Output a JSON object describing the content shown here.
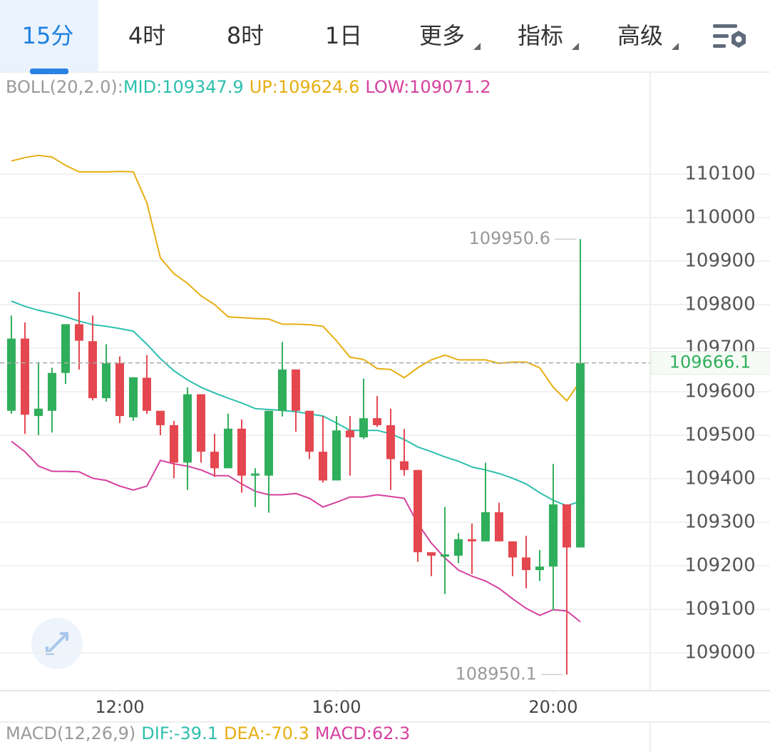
{
  "tabs": {
    "items": [
      "15分",
      "4时",
      "8时",
      "1日",
      "更多",
      "指标",
      "高级"
    ],
    "selected": 0,
    "dropdown_from": 4
  },
  "chart_data": {
    "type": "candlestick",
    "indicator": "BOLL(20,2.0):",
    "x": [
      10,
      10.25,
      10.5,
      10.75,
      11,
      11.25,
      11.5,
      11.75,
      12,
      12.25,
      12.5,
      12.75,
      13,
      13.25,
      13.5,
      13.75,
      14,
      14.25,
      14.5,
      14.75,
      15,
      15.25,
      15.5,
      15.75,
      16,
      16.25,
      16.5,
      16.75,
      17,
      17.25,
      17.5,
      17.75,
      18,
      18.25,
      18.5,
      18.75,
      19,
      19.25,
      19.5,
      19.75,
      20,
      20.25,
      20.5
    ],
    "open": [
      109556,
      109722,
      109544,
      109556,
      109643,
      109755,
      109716,
      109585,
      109665,
      109541,
      109632,
      109556,
      109523,
      109437,
      109594,
      109462,
      109424,
      109515,
      109407,
      109407,
      109556,
      109651,
      109556,
      109462,
      109396,
      109511,
      109495,
      109539,
      109523,
      109440,
      109420,
      109231,
      109221,
      109223,
      109261,
      109256,
      109323,
      109256,
      109219,
      109190,
      109198,
      109341,
      109242
    ],
    "high": [
      109775,
      109759,
      109668,
      109655,
      109755,
      109829,
      109775,
      109709,
      109681,
      109633,
      109684,
      109556,
      109533,
      109610,
      109594,
      109503,
      109549,
      109536,
      109424,
      109556,
      109714,
      109651,
      109556,
      109544,
      109544,
      109544,
      109630,
      109590,
      109561,
      109514,
      109420,
      109231,
      109335,
      109275,
      109297,
      109437,
      109345,
      109256,
      109269,
      109236,
      109434,
      109341,
      109950.6
    ],
    "low": [
      109549,
      109503,
      109500,
      109506,
      109618,
      109651,
      109580,
      109577,
      109528,
      109533,
      109549,
      109500,
      109401,
      109374,
      109437,
      109404,
      109424,
      109368,
      109335,
      109322,
      109543,
      109508,
      109445,
      109391,
      109396,
      109407,
      109491,
      109519,
      109374,
      109407,
      109209,
      109176,
      109135,
      109206,
      109181,
      109256,
      109256,
      109176,
      109148,
      109165,
      109097,
      108950.1,
      109242
    ],
    "close": [
      109722,
      109547,
      109561,
      109643,
      109755,
      109717,
      109585,
      109665,
      109544,
      109633,
      109556,
      109523,
      109437,
      109594,
      109462,
      109424,
      109515,
      109407,
      109412,
      109556,
      109651,
      109556,
      109462,
      109396,
      109511,
      109495,
      109539,
      109523,
      109445,
      109420,
      109231,
      109223,
      109226,
      109261,
      109256,
      109323,
      109256,
      109219,
      109190,
      109198,
      109341,
      109242,
      109666.1
    ],
    "up_color": "#2fae5b",
    "down_color": "#e4474f",
    "series": [
      {
        "name": "MID",
        "legend_label": "MID:109347.9",
        "color": "#2ebfad",
        "values": [
          109808,
          109796,
          109787,
          109780,
          109772,
          109762,
          109754,
          109750,
          109745,
          109739,
          109709,
          109676,
          109648,
          109627,
          109610,
          109597,
          109585,
          109574,
          109561,
          109559,
          109557,
          109554,
          109549,
          109544,
          109528,
          109511,
          109511,
          109511,
          109503,
          109490,
          109473,
          109462,
          109450,
          109440,
          109427,
          109420,
          109412,
          109401,
          109388,
          109368,
          109350,
          109338,
          109347.9
        ]
      },
      {
        "name": "UP",
        "legend_label": "UP:109624.6",
        "color": "#e6ae12",
        "values": [
          110130,
          110138,
          110143,
          110139,
          110120,
          110105,
          110105,
          110105,
          110106,
          110105,
          110034,
          109907,
          109871,
          109849,
          109820,
          109800,
          109772,
          109770,
          109768,
          109767,
          109755,
          109755,
          109754,
          109750,
          109717,
          109679,
          109674,
          109653,
          109651,
          109632,
          109655,
          109673,
          109684,
          109673,
          109673,
          109673,
          109665,
          109668,
          109668,
          109655,
          109610,
          109579,
          109624.6
        ]
      },
      {
        "name": "LOW",
        "legend_label": "LOW:109071.2",
        "color": "#d6409f",
        "values": [
          109486,
          109462,
          109429,
          109417,
          109417,
          109416,
          109401,
          109396,
          109383,
          109374,
          109383,
          109442,
          109434,
          109429,
          109420,
          109407,
          109407,
          109388,
          109371,
          109363,
          109363,
          109366,
          109355,
          109335,
          109346,
          109358,
          109358,
          109363,
          109359,
          109355,
          109297,
          109252,
          109218,
          109190,
          109176,
          109165,
          109148,
          109124,
          109102,
          109086,
          109099,
          109096,
          109071.2
        ]
      }
    ],
    "xlim": [
      9.79,
      21.79
    ],
    "xticks": [
      {
        "value": 12,
        "label": "12:00"
      },
      {
        "value": 16,
        "label": "16:00"
      },
      {
        "value": 20,
        "label": "20:00"
      }
    ],
    "ylim": [
      108913,
      110336
    ],
    "yticks": [
      109000,
      109100,
      109200,
      109300,
      109400,
      109500,
      109600,
      109700,
      109800,
      109900,
      110000,
      110100
    ],
    "grid": true
  },
  "macd": {
    "label": "MACD(12,26,9)",
    "items": [
      {
        "text": "DIF:-39.1",
        "color": "#2ebfad"
      },
      {
        "text": "DEA:-70.3",
        "color": "#e6ae12"
      },
      {
        "text": "MACD:62.3",
        "color": "#d6409f"
      }
    ]
  }
}
